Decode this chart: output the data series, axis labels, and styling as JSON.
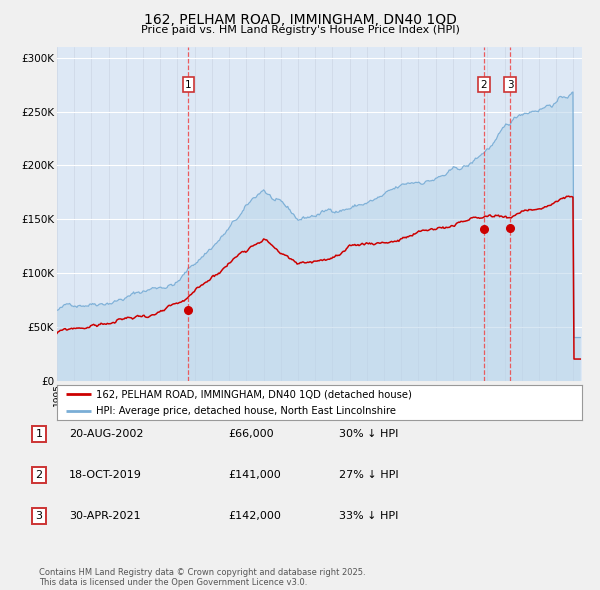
{
  "title": "162, PELHAM ROAD, IMMINGHAM, DN40 1QD",
  "subtitle": "Price paid vs. HM Land Registry's House Price Index (HPI)",
  "background_color": "#f0f0f0",
  "plot_bg_color": "#dde8f5",
  "ylabel_color": "#222222",
  "sale_dates_decimal": [
    2002.637,
    2019.794,
    2021.33
  ],
  "sale_prices": [
    66000,
    141000,
    142000
  ],
  "sale_labels": [
    "1",
    "2",
    "3"
  ],
  "legend_entries": [
    "162, PELHAM ROAD, IMMINGHAM, DN40 1QD (detached house)",
    "HPI: Average price, detached house, North East Lincolnshire"
  ],
  "table_rows": [
    {
      "label": "1",
      "date": "20-AUG-2002",
      "price": "£66,000",
      "hpi": "30% ↓ HPI"
    },
    {
      "label": "2",
      "date": "18-OCT-2019",
      "price": "£141,000",
      "hpi": "27% ↓ HPI"
    },
    {
      "label": "3",
      "date": "30-APR-2021",
      "price": "£142,000",
      "hpi": "33% ↓ HPI"
    }
  ],
  "footer": "Contains HM Land Registry data © Crown copyright and database right 2025.\nThis data is licensed under the Open Government Licence v3.0.",
  "ylim": [
    0,
    310000
  ],
  "yticks": [
    0,
    50000,
    100000,
    150000,
    200000,
    250000,
    300000
  ],
  "ytick_labels": [
    "£0",
    "£50K",
    "£100K",
    "£150K",
    "£200K",
    "£250K",
    "£300K"
  ],
  "xstart": 1995.0,
  "xend": 2025.5,
  "red_color": "#cc0000",
  "blue_color": "#7aaed6",
  "blue_fill_color": "#b8d4ea",
  "dashed_color": "#ee4444"
}
